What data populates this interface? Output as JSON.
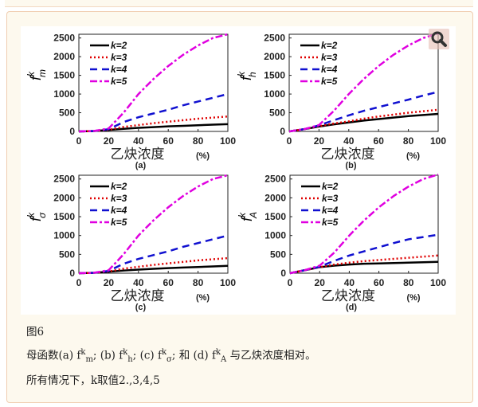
{
  "caption": {
    "fig_label": "图6",
    "line1_parts": [
      "母函数(a) f",
      "k",
      "m",
      "; (b) f",
      "k",
      "h",
      "; (c) f",
      "k",
      "σ",
      "; 和 (d) f",
      "k",
      "A",
      " 与乙炔浓度相对。"
    ],
    "line2": "所有情况下，k取值2.,3,4,5"
  },
  "zoom_icon": "magnifier-icon",
  "chart_data": [
    {
      "type": "line",
      "panel_label": "(a)",
      "ylabel_sup": "k",
      "ylabel_sub": "m",
      "xlabel": "乙炔浓度",
      "xunit": "(%)",
      "xlim": [
        0,
        100
      ],
      "ylim": [
        0,
        2600
      ],
      "xticks": [
        0,
        20,
        40,
        60,
        80,
        100
      ],
      "yticks": [
        0,
        500,
        1000,
        1500,
        2000,
        2500
      ],
      "legend_position": "top-left",
      "x": [
        0,
        10,
        20,
        30,
        40,
        50,
        60,
        70,
        80,
        90,
        100
      ],
      "series": [
        {
          "name": "k=2",
          "color": "#000000",
          "values": [
            0,
            10,
            40,
            70,
            95,
            115,
            135,
            150,
            165,
            180,
            195
          ]
        },
        {
          "name": "k=3",
          "color": "#e00000",
          "values": [
            0,
            10,
            45,
            120,
            170,
            220,
            260,
            300,
            340,
            370,
            400
          ]
        },
        {
          "name": "k=4",
          "color": "#1010d0",
          "values": [
            0,
            10,
            60,
            250,
            380,
            480,
            580,
            700,
            800,
            900,
            1000
          ]
        },
        {
          "name": "k=5",
          "color": "#e000e0",
          "values": [
            0,
            10,
            80,
            500,
            1000,
            1400,
            1750,
            2050,
            2300,
            2500,
            2600
          ]
        }
      ]
    },
    {
      "type": "line",
      "panel_label": "(b)",
      "ylabel_sup": "k",
      "ylabel_sub": "h",
      "xlabel": "乙炔浓度",
      "xunit": "(%)",
      "xlim": [
        0,
        100
      ],
      "ylim": [
        0,
        2600
      ],
      "xticks": [
        0,
        20,
        40,
        60,
        80,
        100
      ],
      "yticks": [
        0,
        500,
        1000,
        1500,
        2000,
        2500
      ],
      "legend_position": "top-left",
      "x": [
        0,
        10,
        20,
        30,
        40,
        50,
        60,
        70,
        80,
        90,
        100
      ],
      "series": [
        {
          "name": "k=2",
          "color": "#000000",
          "values": [
            0,
            60,
            130,
            190,
            240,
            290,
            330,
            370,
            410,
            440,
            470
          ]
        },
        {
          "name": "k=3",
          "color": "#e00000",
          "values": [
            0,
            60,
            140,
            210,
            270,
            340,
            400,
            450,
            500,
            540,
            580
          ]
        },
        {
          "name": "k=4",
          "color": "#1010d0",
          "values": [
            0,
            60,
            160,
            300,
            430,
            550,
            650,
            750,
            850,
            960,
            1060
          ]
        },
        {
          "name": "k=5",
          "color": "#e000e0",
          "values": [
            0,
            60,
            170,
            550,
            1000,
            1400,
            1750,
            2050,
            2300,
            2500,
            2620
          ]
        }
      ]
    },
    {
      "type": "line",
      "panel_label": "(c)",
      "ylabel_sup": "k",
      "ylabel_sub": "σ",
      "xlabel": "乙炔浓度",
      "xunit": "(%)",
      "xlim": [
        0,
        100
      ],
      "ylim": [
        0,
        2600
      ],
      "xticks": [
        0,
        20,
        40,
        60,
        80,
        100
      ],
      "yticks": [
        0,
        500,
        1000,
        1500,
        2000,
        2500
      ],
      "legend_position": "top-left",
      "x": [
        0,
        10,
        20,
        30,
        40,
        50,
        60,
        70,
        80,
        90,
        100
      ],
      "series": [
        {
          "name": "k=2",
          "color": "#000000",
          "values": [
            0,
            10,
            40,
            70,
            95,
            115,
            135,
            150,
            165,
            180,
            195
          ]
        },
        {
          "name": "k=3",
          "color": "#e00000",
          "values": [
            0,
            10,
            45,
            120,
            170,
            220,
            260,
            300,
            340,
            370,
            400
          ]
        },
        {
          "name": "k=4",
          "color": "#1010d0",
          "values": [
            0,
            10,
            60,
            250,
            380,
            480,
            580,
            700,
            800,
            900,
            1000
          ]
        },
        {
          "name": "k=5",
          "color": "#e000e0",
          "values": [
            0,
            10,
            80,
            500,
            1000,
            1400,
            1750,
            2050,
            2300,
            2500,
            2600
          ]
        }
      ]
    },
    {
      "type": "line",
      "panel_label": "(d)",
      "ylabel_sup": "k",
      "ylabel_sub": "A",
      "xlabel": "乙炔浓度",
      "xunit": "(%)",
      "xlim": [
        0,
        100
      ],
      "ylim": [
        0,
        2600
      ],
      "xticks": [
        0,
        20,
        40,
        60,
        80,
        100
      ],
      "yticks": [
        0,
        500,
        1000,
        1500,
        2000,
        2500
      ],
      "legend_position": "top-left",
      "x": [
        0,
        10,
        20,
        30,
        40,
        50,
        60,
        70,
        80,
        90,
        100
      ],
      "series": [
        {
          "name": "k=2",
          "color": "#000000",
          "values": [
            0,
            80,
            160,
            200,
            230,
            250,
            260,
            270,
            280,
            290,
            300
          ]
        },
        {
          "name": "k=3",
          "color": "#e00000",
          "values": [
            0,
            80,
            160,
            230,
            280,
            320,
            350,
            380,
            410,
            440,
            470
          ]
        },
        {
          "name": "k=4",
          "color": "#1010d0",
          "values": [
            0,
            80,
            170,
            330,
            470,
            580,
            690,
            800,
            900,
            960,
            1020
          ]
        },
        {
          "name": "k=5",
          "color": "#e000e0",
          "values": [
            0,
            80,
            200,
            550,
            1000,
            1400,
            1750,
            2050,
            2300,
            2500,
            2620
          ]
        }
      ]
    }
  ]
}
